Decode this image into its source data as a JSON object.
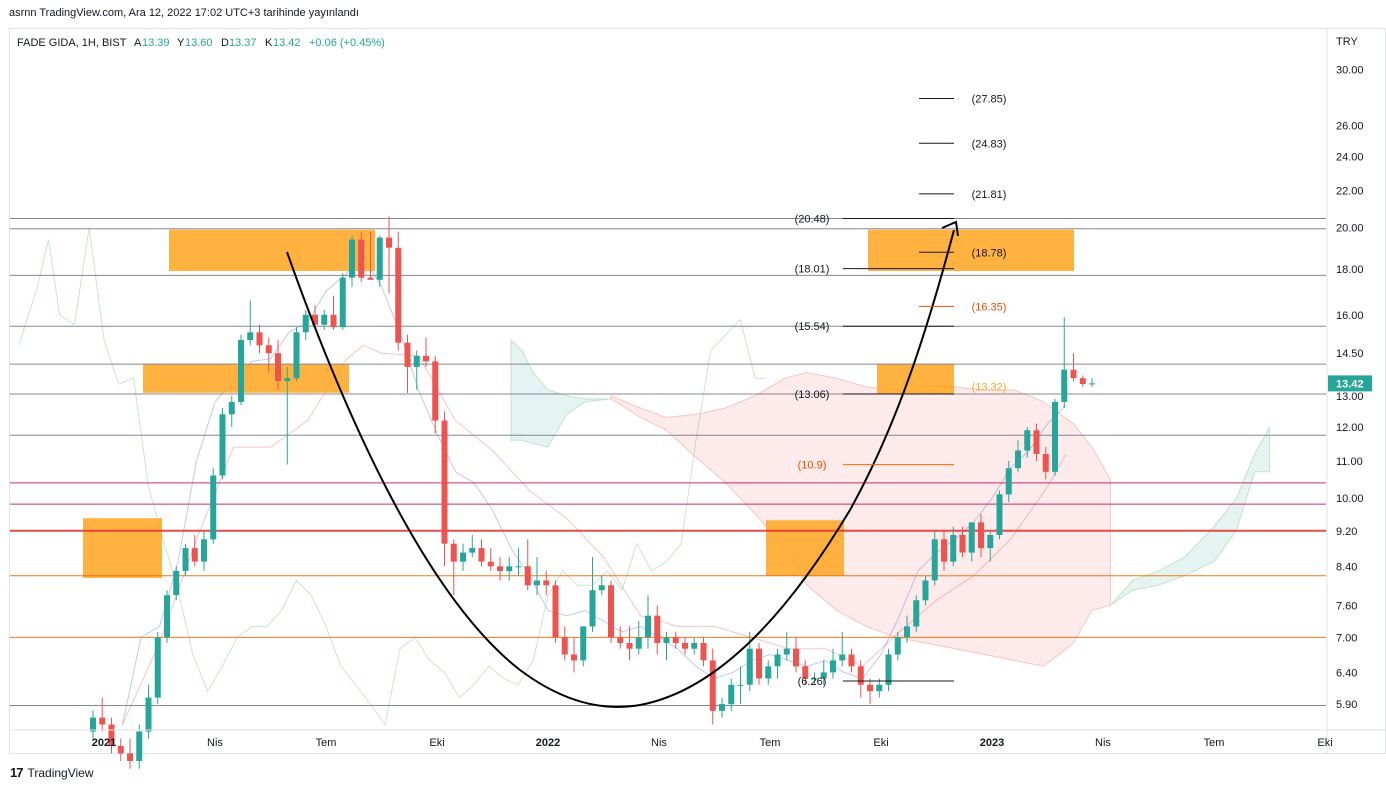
{
  "caption": "asrnn TradingView.com, Ara 12, 2022 17:02 UTC+3 tarihinde yayınlandı",
  "header": {
    "symbol": "FADE GIDA, 1H, BIST",
    "open_label": "A",
    "open": "13.39",
    "high_label": "Y",
    "high": "13.60",
    "low_label": "D",
    "low": "13.37",
    "close_label": "K",
    "close": "13.42",
    "change": "+0.06 (+0.45%)"
  },
  "footer": {
    "logo": "17",
    "brand": "TradingView"
  },
  "colors": {
    "up": "#26a69a",
    "down": "#ef5350",
    "box": "#ffa726",
    "orange_text": "#e65100",
    "level": "#787b86"
  },
  "chart_data": {
    "type": "candlestick",
    "currency": "TRY",
    "last_price": "13.42",
    "y_scale": "log",
    "ylim": [
      5.55,
      32.0
    ],
    "y_ticks": [
      "30.00",
      "26.00",
      "24.00",
      "22.00",
      "20.00",
      "18.00",
      "16.00",
      "14.50",
      "13.00",
      "12.00",
      "11.00",
      "10.00",
      "9.20",
      "8.40",
      "7.60",
      "7.00",
      "6.40",
      "5.90"
    ],
    "x_ticks": [
      {
        "label": "2021",
        "t": 1.0
      },
      {
        "label": "Nis",
        "t": 4.0
      },
      {
        "label": "Tem",
        "t": 7.0
      },
      {
        "label": "Eki",
        "t": 10.0
      },
      {
        "label": "2022",
        "t": 13.0
      },
      {
        "label": "Nis",
        "t": 16.0
      },
      {
        "label": "Tem",
        "t": 19.0
      },
      {
        "label": "Eki",
        "t": 22.0
      },
      {
        "label": "2023",
        "t": 25.0
      },
      {
        "label": "Nis",
        "t": 28.0
      },
      {
        "label": "Tem",
        "t": 31.0
      },
      {
        "label": "Eki",
        "t": 34.0
      }
    ],
    "candles": [
      [
        0.0,
        5.5,
        5.8,
        5.4,
        5.7
      ],
      [
        0.25,
        5.7,
        6.0,
        5.5,
        5.6
      ],
      [
        0.5,
        5.6,
        5.7,
        5.2,
        5.3
      ],
      [
        0.75,
        5.3,
        5.4,
        5.1,
        5.2
      ],
      [
        1.0,
        5.2,
        5.4,
        5.0,
        5.1
      ],
      [
        1.25,
        5.1,
        5.6,
        5.0,
        5.5
      ],
      [
        1.5,
        5.5,
        6.2,
        5.4,
        6.0
      ],
      [
        1.75,
        6.0,
        7.1,
        5.9,
        7.0
      ],
      [
        2.0,
        7.0,
        7.9,
        6.9,
        7.8
      ],
      [
        2.25,
        7.8,
        8.4,
        7.7,
        8.3
      ],
      [
        2.5,
        8.3,
        8.9,
        8.2,
        8.8
      ],
      [
        2.75,
        8.8,
        9.1,
        8.4,
        8.5
      ],
      [
        3.0,
        8.5,
        9.2,
        8.3,
        9.0
      ],
      [
        3.25,
        9.0,
        10.8,
        8.9,
        10.6
      ],
      [
        3.5,
        10.6,
        12.6,
        10.5,
        12.4
      ],
      [
        3.75,
        12.4,
        13.0,
        12.0,
        12.8
      ],
      [
        4.0,
        12.8,
        15.2,
        12.7,
        15.0
      ],
      [
        4.25,
        15.0,
        16.6,
        14.8,
        15.3
      ],
      [
        4.5,
        15.3,
        15.6,
        14.5,
        14.8
      ],
      [
        4.75,
        14.8,
        15.1,
        13.8,
        14.5
      ],
      [
        5.0,
        14.5,
        15.0,
        13.2,
        13.5
      ],
      [
        5.25,
        13.5,
        14.0,
        10.9,
        13.6
      ],
      [
        5.5,
        13.6,
        15.5,
        13.5,
        15.3
      ],
      [
        5.75,
        15.3,
        16.2,
        15.0,
        16.0
      ],
      [
        6.0,
        16.0,
        16.4,
        15.5,
        15.6
      ],
      [
        6.25,
        15.6,
        16.2,
        15.4,
        16.0
      ],
      [
        6.5,
        16.0,
        16.8,
        15.4,
        15.5
      ],
      [
        6.75,
        15.5,
        17.8,
        15.4,
        17.6
      ],
      [
        7.0,
        17.6,
        19.6,
        17.2,
        19.4
      ],
      [
        7.25,
        19.4,
        19.8,
        17.4,
        17.6
      ],
      [
        7.5,
        17.6,
        19.8,
        17.5,
        17.5
      ],
      [
        7.75,
        17.5,
        19.6,
        17.2,
        19.5
      ],
      [
        8.0,
        19.5,
        20.6,
        16.9,
        19.0
      ],
      [
        8.25,
        19.0,
        19.8,
        14.6,
        14.9
      ],
      [
        8.5,
        14.9,
        15.2,
        13.1,
        14.0
      ],
      [
        8.75,
        14.0,
        14.6,
        13.2,
        14.4
      ],
      [
        9.0,
        14.4,
        15.1,
        14.0,
        14.2
      ],
      [
        9.25,
        14.2,
        14.4,
        11.8,
        12.2
      ],
      [
        9.5,
        12.2,
        12.5,
        8.4,
        8.9
      ],
      [
        9.75,
        8.9,
        9.0,
        7.8,
        8.5
      ],
      [
        10.0,
        8.5,
        8.9,
        8.3,
        8.7
      ],
      [
        10.25,
        8.7,
        9.1,
        8.6,
        8.8
      ],
      [
        10.5,
        8.8,
        9.0,
        8.4,
        8.5
      ],
      [
        10.75,
        8.5,
        8.8,
        8.3,
        8.4
      ],
      [
        11.0,
        8.4,
        8.6,
        8.1,
        8.3
      ],
      [
        11.25,
        8.3,
        8.6,
        8.1,
        8.4
      ],
      [
        11.5,
        8.4,
        8.8,
        8.2,
        8.4
      ],
      [
        11.75,
        8.4,
        9.0,
        7.9,
        8.0
      ],
      [
        12.0,
        8.0,
        8.6,
        7.8,
        8.1
      ],
      [
        12.25,
        8.1,
        8.3,
        7.8,
        8.0
      ],
      [
        12.5,
        8.0,
        8.1,
        6.9,
        7.0
      ],
      [
        12.75,
        7.0,
        7.2,
        6.6,
        6.7
      ],
      [
        13.0,
        6.7,
        7.0,
        6.4,
        6.6
      ],
      [
        13.25,
        6.6,
        7.2,
        6.5,
        7.2
      ],
      [
        13.5,
        7.2,
        8.6,
        7.1,
        7.9
      ],
      [
        13.75,
        7.9,
        8.2,
        7.8,
        8.0
      ],
      [
        14.0,
        8.0,
        8.1,
        6.9,
        7.0
      ],
      [
        14.25,
        7.0,
        7.2,
        6.8,
        6.9
      ],
      [
        14.5,
        6.9,
        7.2,
        6.6,
        6.8
      ],
      [
        14.75,
        6.8,
        7.3,
        6.7,
        7.0
      ],
      [
        15.0,
        7.0,
        7.8,
        6.8,
        7.4
      ],
      [
        15.25,
        7.4,
        7.6,
        6.7,
        6.9
      ],
      [
        15.5,
        6.9,
        7.1,
        6.6,
        7.0
      ],
      [
        15.75,
        7.0,
        7.1,
        6.8,
        6.9
      ],
      [
        16.0,
        6.9,
        7.0,
        6.7,
        6.8
      ],
      [
        16.25,
        6.8,
        7.0,
        6.7,
        6.9
      ],
      [
        16.5,
        6.9,
        7.0,
        6.5,
        6.6
      ],
      [
        16.75,
        6.6,
        6.8,
        5.6,
        5.8
      ],
      [
        17.0,
        5.8,
        6.0,
        5.7,
        5.9
      ],
      [
        17.25,
        5.9,
        6.3,
        5.8,
        6.2
      ],
      [
        17.5,
        6.2,
        6.5,
        5.9,
        6.2
      ],
      [
        17.75,
        6.2,
        7.1,
        6.1,
        6.8
      ],
      [
        18.0,
        6.8,
        6.9,
        6.2,
        6.3
      ],
      [
        18.25,
        6.3,
        6.6,
        6.2,
        6.5
      ],
      [
        18.5,
        6.5,
        6.8,
        6.3,
        6.7
      ],
      [
        18.75,
        6.7,
        7.1,
        6.6,
        6.8
      ],
      [
        19.0,
        6.8,
        7.0,
        6.4,
        6.5
      ],
      [
        19.25,
        6.5,
        6.6,
        6.2,
        6.3
      ],
      [
        19.5,
        6.3,
        6.4,
        6.2,
        6.3
      ],
      [
        19.75,
        6.3,
        6.6,
        6.2,
        6.4
      ],
      [
        20.0,
        6.4,
        6.8,
        6.3,
        6.6
      ],
      [
        20.25,
        6.6,
        7.1,
        6.5,
        6.7
      ],
      [
        20.5,
        6.7,
        6.8,
        6.4,
        6.5
      ],
      [
        20.75,
        6.5,
        6.6,
        6.0,
        6.2
      ],
      [
        21.0,
        6.2,
        6.3,
        5.9,
        6.1
      ],
      [
        21.25,
        6.1,
        6.3,
        6.0,
        6.2
      ],
      [
        21.5,
        6.2,
        6.8,
        6.1,
        6.7
      ],
      [
        21.75,
        6.7,
        7.1,
        6.6,
        7.0
      ],
      [
        22.0,
        7.0,
        7.4,
        6.9,
        7.2
      ],
      [
        22.25,
        7.2,
        7.8,
        7.1,
        7.7
      ],
      [
        22.5,
        7.7,
        8.2,
        7.6,
        8.1
      ],
      [
        22.75,
        8.1,
        9.2,
        8.0,
        9.0
      ],
      [
        23.0,
        9.0,
        9.2,
        8.3,
        8.5
      ],
      [
        23.25,
        8.5,
        9.3,
        8.4,
        9.1
      ],
      [
        23.5,
        9.1,
        9.3,
        8.6,
        8.7
      ],
      [
        23.75,
        8.7,
        9.4,
        8.5,
        9.4
      ],
      [
        24.0,
        9.4,
        9.6,
        8.6,
        8.8
      ],
      [
        24.25,
        8.8,
        9.2,
        8.5,
        9.1
      ],
      [
        24.5,
        9.1,
        10.2,
        9.0,
        10.1
      ],
      [
        24.75,
        10.1,
        11.0,
        9.9,
        10.8
      ],
      [
        25.0,
        10.8,
        11.6,
        10.7,
        11.3
      ],
      [
        25.25,
        11.3,
        12.0,
        11.1,
        11.9
      ],
      [
        25.5,
        11.9,
        12.1,
        11.0,
        11.2
      ],
      [
        25.75,
        11.2,
        11.4,
        10.5,
        10.7
      ],
      [
        26.0,
        10.7,
        12.9,
        10.6,
        12.8
      ],
      [
        26.25,
        12.8,
        15.9,
        12.6,
        13.9
      ],
      [
        26.5,
        13.9,
        14.5,
        13.5,
        13.6
      ],
      [
        26.75,
        13.6,
        13.7,
        13.3,
        13.4
      ],
      [
        27.0,
        13.4,
        13.6,
        13.3,
        13.42
      ]
    ],
    "levels": [
      {
        "price": 20.48,
        "label": "(20.48)"
      },
      {
        "price": 18.01,
        "label": "(18.01)"
      },
      {
        "price": 15.54,
        "label": "(15.54)"
      },
      {
        "price": 13.06,
        "label": "(13.06)"
      },
      {
        "price": 6.26,
        "label": "(6.26)"
      },
      {
        "price": 10.9,
        "label": "(10.9)"
      }
    ],
    "targets": [
      {
        "price": 27.85,
        "label": "(27.85)"
      },
      {
        "price": 24.83,
        "label": "(24.83)"
      },
      {
        "price": 21.81,
        "label": "(21.81)"
      },
      {
        "price": 18.78,
        "label": "(18.78)"
      },
      {
        "price": 16.35,
        "label": "(16.35)"
      },
      {
        "price": 13.32,
        "label": "(13.32)"
      }
    ]
  }
}
